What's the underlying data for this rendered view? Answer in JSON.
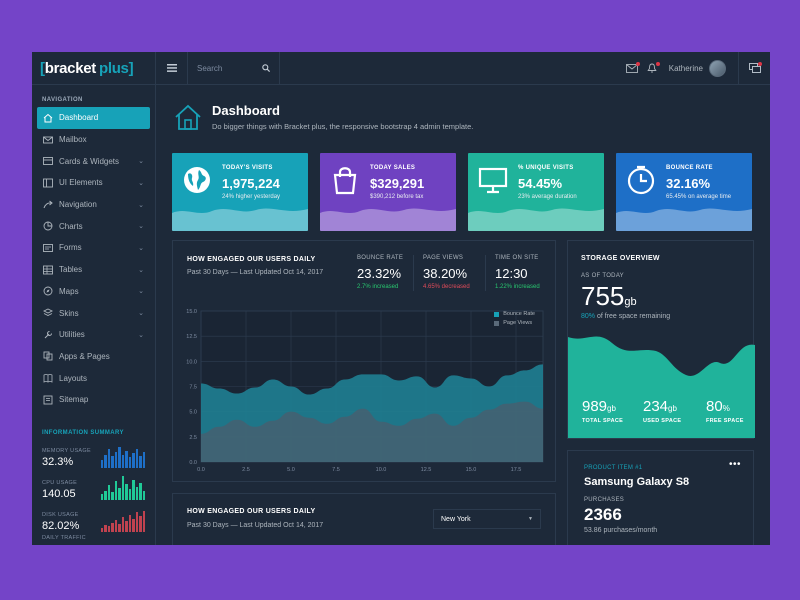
{
  "brand": {
    "bracket": "bracket",
    "plus": "plus"
  },
  "header": {
    "search_placeholder": "Search",
    "user_name": "Katherine"
  },
  "sidebar": {
    "nav_title": "NAVIGATION",
    "items": [
      {
        "label": "Dashboard",
        "icon": "home-icon",
        "active": true
      },
      {
        "label": "Mailbox",
        "icon": "mail-icon"
      },
      {
        "label": "Cards & Widgets",
        "icon": "cards-icon",
        "chevron": true
      },
      {
        "label": "UI Elements",
        "icon": "ui-elements-icon",
        "chevron": true
      },
      {
        "label": "Navigation",
        "icon": "navigation-icon",
        "chevron": true
      },
      {
        "label": "Charts",
        "icon": "charts-icon",
        "chevron": true
      },
      {
        "label": "Forms",
        "icon": "forms-icon",
        "chevron": true
      },
      {
        "label": "Tables",
        "icon": "tables-icon",
        "chevron": true
      },
      {
        "label": "Maps",
        "icon": "maps-icon",
        "chevron": true
      },
      {
        "label": "Skins",
        "icon": "skins-icon",
        "chevron": true
      },
      {
        "label": "Utilities",
        "icon": "utilities-icon",
        "chevron": true
      },
      {
        "label": "Apps & Pages",
        "icon": "apps-icon"
      },
      {
        "label": "Layouts",
        "icon": "layouts-icon"
      },
      {
        "label": "Sitemap",
        "icon": "sitemap-icon"
      }
    ],
    "info_title": "INFORMATION SUMMARY",
    "info": [
      {
        "label": "MEMORY USAGE",
        "value": "32.3%",
        "color": "#1e6fc7",
        "bars": [
          6,
          10,
          14,
          9,
          12,
          16,
          10,
          13,
          8,
          11,
          14,
          9,
          12
        ]
      },
      {
        "label": "CPU USAGE",
        "value": "140.05",
        "color": "#20c997",
        "bars": [
          4,
          7,
          11,
          6,
          14,
          9,
          18,
          12,
          8,
          15,
          10,
          13,
          7
        ]
      },
      {
        "label": "DISK USAGE",
        "value": "82.02%",
        "color": "#c0424f",
        "bars": [
          3,
          5,
          4,
          7,
          9,
          6,
          11,
          8,
          13,
          10,
          15,
          12,
          16
        ]
      }
    ],
    "info_partial": "DAILY TRAFFIC"
  },
  "dashboard": {
    "title": "Dashboard",
    "subtitle": "Do bigger things with Bracket plus, the responsive bootstrap 4 admin template."
  },
  "stats": [
    {
      "label": "TODAY'S VISITS",
      "value": "1,975,224",
      "sub": "24% higher yesterday",
      "color": "#17a2b8",
      "icon": "globe-icon"
    },
    {
      "label": "TODAY SALES",
      "value": "$329,291",
      "sub": "$390,212 before tax",
      "color": "#6f42c1",
      "icon": "shopping-bag-icon"
    },
    {
      "label": "% UNIQUE VISITS",
      "value": "54.45%",
      "sub": "23% average duration",
      "color": "#20b39b",
      "icon": "monitor-icon"
    },
    {
      "label": "BOUNCE RATE",
      "value": "32.16%",
      "sub": "65.45% on average time",
      "color": "#1e6fc7",
      "icon": "clock-icon"
    }
  ],
  "engage": {
    "title": "HOW ENGAGED OUR USERS DAILY",
    "sub": "Past 30 Days — Last Updated Oct 14, 2017",
    "kpis": [
      {
        "label": "BOUNCE RATE",
        "value": "23.32%",
        "note": "2.7% increased",
        "note_color": "#28c76f"
      },
      {
        "label": "PAGE VIEWS",
        "value": "38.20%",
        "note": "4.65% decreased",
        "note_color": "#e04b59"
      },
      {
        "label": "TIME ON SITE",
        "value": "12:30",
        "note": "1.22% increased",
        "note_color": "#28c76f"
      }
    ]
  },
  "chart_data": {
    "type": "area",
    "x": [
      0,
      1,
      2,
      3,
      4,
      5,
      6,
      7,
      8,
      9,
      10,
      11,
      12,
      13,
      14,
      15,
      16,
      17,
      18,
      19
    ],
    "xticks": [
      "0.0",
      "2.5",
      "5.0",
      "7.5",
      "10.0",
      "12.5",
      "15.0",
      "17.5"
    ],
    "yticks": [
      "0.0",
      "2.5",
      "5.0",
      "7.5",
      "10.0",
      "12.5",
      "15.0"
    ],
    "ylim": [
      0,
      15
    ],
    "xlim": [
      0,
      19
    ],
    "grid": true,
    "legend": "top-right",
    "series": [
      {
        "name": "Bounce Rate",
        "color": "#1f7f92",
        "values": [
          7.8,
          7.3,
          6.8,
          7.4,
          8.2,
          7.5,
          6.7,
          7.3,
          8.2,
          8.7,
          8.7,
          8.1,
          8.5,
          7.4,
          8.6,
          8.3,
          7.5,
          8.6,
          9.1,
          9.7
        ]
      },
      {
        "name": "Page Views",
        "color": "#4b5d6e",
        "values": [
          2.8,
          3.5,
          4.2,
          3.5,
          4.1,
          5.0,
          4.4,
          3.8,
          4.5,
          5.3,
          4.0,
          3.6,
          4.3,
          4.8,
          3.6,
          4.4,
          5.2,
          5.8,
          6.0,
          5.3
        ]
      }
    ]
  },
  "storage": {
    "title": "STORAGE OVERVIEW",
    "as_of": "AS OF TODAY",
    "value": "755",
    "unit": "gb",
    "pct": "80%",
    "pct_text": "of free space remaining",
    "footer": [
      {
        "value": "989",
        "unit": "gb",
        "label": "TOTAL SPACE"
      },
      {
        "value": "234",
        "unit": "gb",
        "label": "USED SPACE"
      },
      {
        "value": "80",
        "unit": "%",
        "label": "FREE SPACE"
      }
    ]
  },
  "engage2": {
    "title": "HOW ENGAGED OUR USERS DAILY",
    "sub": "Past 30 Days — Last Updated Oct 14, 2017",
    "select": "New York"
  },
  "product": {
    "tag": "PRODUCT ITEM #1",
    "name": "Samsung Galaxy S8",
    "purchases_label": "PURCHASES",
    "purchases": "2366",
    "rate": "53.86 purchases/month"
  }
}
